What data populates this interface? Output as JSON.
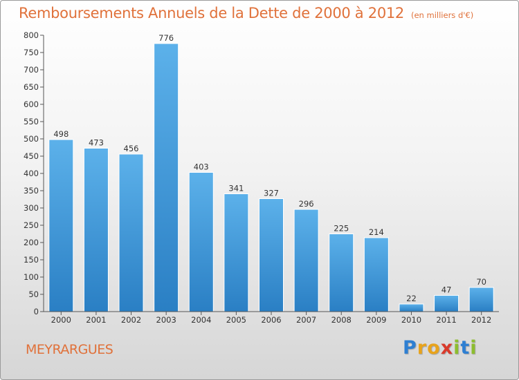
{
  "chart_data": {
    "type": "bar",
    "title": "Remboursements Annuels de la Dette de 2000 à 2012",
    "subtitle": "(en milliers d'€)",
    "categories": [
      "2000",
      "2001",
      "2002",
      "2003",
      "2004",
      "2005",
      "2006",
      "2007",
      "2008",
      "2009",
      "2010",
      "2011",
      "2012"
    ],
    "values": [
      498,
      473,
      456,
      776,
      403,
      341,
      327,
      296,
      225,
      214,
      22,
      47,
      70
    ],
    "ylim": [
      0,
      800
    ],
    "yticks": [
      0,
      50,
      100,
      150,
      200,
      250,
      300,
      350,
      400,
      450,
      500,
      550,
      600,
      650,
      700,
      750,
      800
    ],
    "grid": false,
    "bar_color": "#3d97dc"
  },
  "footer": {
    "city": "MEYRARGUES",
    "logo": {
      "letters": [
        "P",
        "r",
        "o",
        "x",
        "i",
        "t",
        "i"
      ],
      "colors": [
        "#2e7fd2",
        "#e8a31c",
        "#e8a31c",
        "#d93a2b",
        "#8dbd2f",
        "#2e7fd2",
        "#8dbd2f"
      ]
    }
  }
}
